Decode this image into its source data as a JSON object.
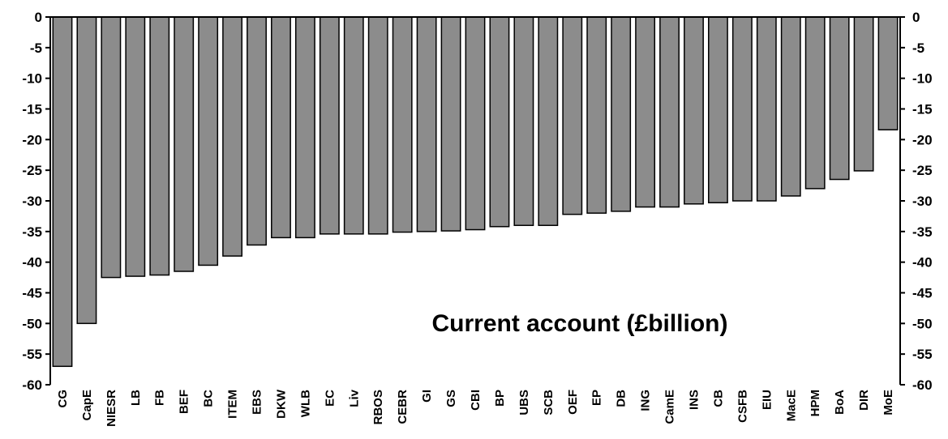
{
  "chart_data": {
    "type": "bar",
    "title": "Current account (£billion)",
    "categories": [
      "CG",
      "CapE",
      "NIESR",
      "LB",
      "FB",
      "BEF",
      "BC",
      "ITEM",
      "EBS",
      "DKW",
      "WLB",
      "EC",
      "Liv",
      "RBOS",
      "CEBR",
      "GI",
      "GS",
      "CBI",
      "BP",
      "UBS",
      "SCB",
      "OEF",
      "EP",
      "DB",
      "ING",
      "CamE",
      "INS",
      "CB",
      "CSFB",
      "EIU",
      "MacE",
      "HPM",
      "BoA",
      "DIR",
      "MoE"
    ],
    "values": [
      -57,
      -50,
      -42.5,
      -42.3,
      -42.1,
      -41.5,
      -40.5,
      -39,
      -37.2,
      -36,
      -36,
      -35.4,
      -35.4,
      -35.4,
      -35.1,
      -35,
      -34.9,
      -34.7,
      -34.2,
      -34,
      -34,
      -32.2,
      -32,
      -31.7,
      -31,
      -31,
      -30.5,
      -30.3,
      -30,
      -30,
      -29.2,
      -28,
      -26.5,
      -25.1,
      -18.4
    ],
    "ylim": [
      -60,
      0
    ],
    "yticks": [
      "0",
      "-5",
      "-10",
      "-15",
      "-20",
      "-25",
      "-30",
      "-35",
      "-40",
      "-45",
      "-50",
      "-55",
      "-60"
    ],
    "grid": false,
    "bar_color": "#8c8c8c"
  }
}
